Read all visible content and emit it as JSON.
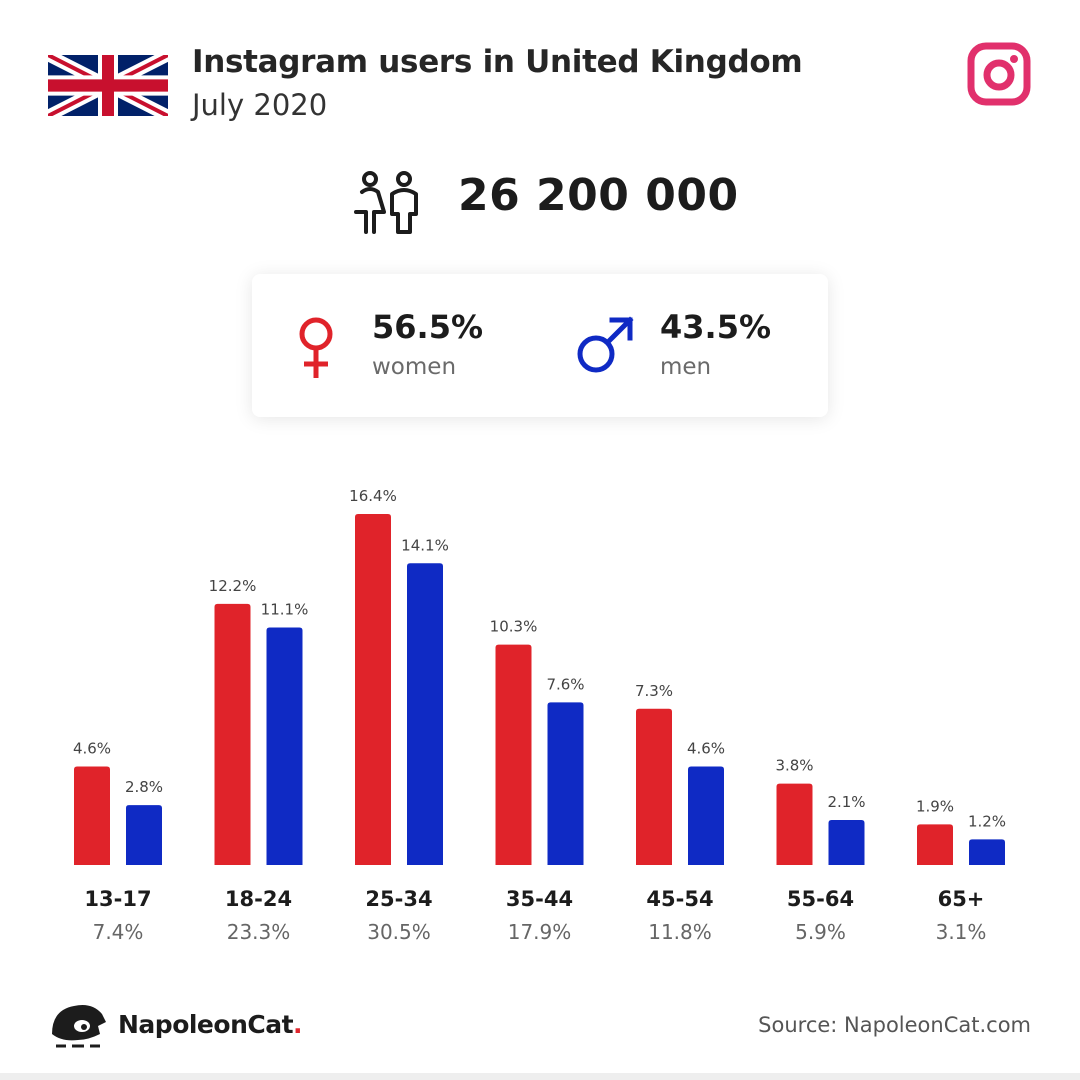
{
  "header": {
    "title": "Instagram users in United Kingdom",
    "subtitle": "July 2020",
    "flag_icon": "uk-flag-icon",
    "app_icon": "instagram-icon"
  },
  "total_users": "26 200 000",
  "gender": {
    "women": {
      "pct": "56.5%",
      "label": "women",
      "color": "#e0232a",
      "icon": "female-symbol-icon"
    },
    "men": {
      "pct": "43.5%",
      "label": "men",
      "color": "#0f2ac4",
      "icon": "male-symbol-icon"
    }
  },
  "chart_data": {
    "type": "bar",
    "categories": [
      "13-17",
      "18-24",
      "25-34",
      "35-44",
      "45-54",
      "55-64",
      "65+"
    ],
    "category_totals": [
      "7.4%",
      "23.3%",
      "30.5%",
      "17.9%",
      "11.8%",
      "5.9%",
      "3.1%"
    ],
    "series": [
      {
        "values": [
          4.6,
          12.2,
          16.4,
          10.3,
          7.3,
          3.8,
          1.9
        ],
        "labels": [
          "4.6%",
          "12.2%",
          "16.4%",
          "10.3%",
          "7.3%",
          "3.8%",
          "1.9%"
        ],
        "color": "#e0232a"
      },
      {
        "values": [
          2.8,
          11.1,
          14.1,
          7.6,
          4.6,
          2.1,
          1.2
        ],
        "labels": [
          "2.8%",
          "11.1%",
          "14.1%",
          "7.6%",
          "4.6%",
          "2.1%",
          "1.2%"
        ],
        "color": "#0f2ac4"
      }
    ],
    "title": "",
    "xlabel": "",
    "ylabel": "",
    "grid": false
  },
  "footer": {
    "brand": "NapoleonCat",
    "brand_dot": ".",
    "source": "Source: NapoleonCat.com"
  }
}
